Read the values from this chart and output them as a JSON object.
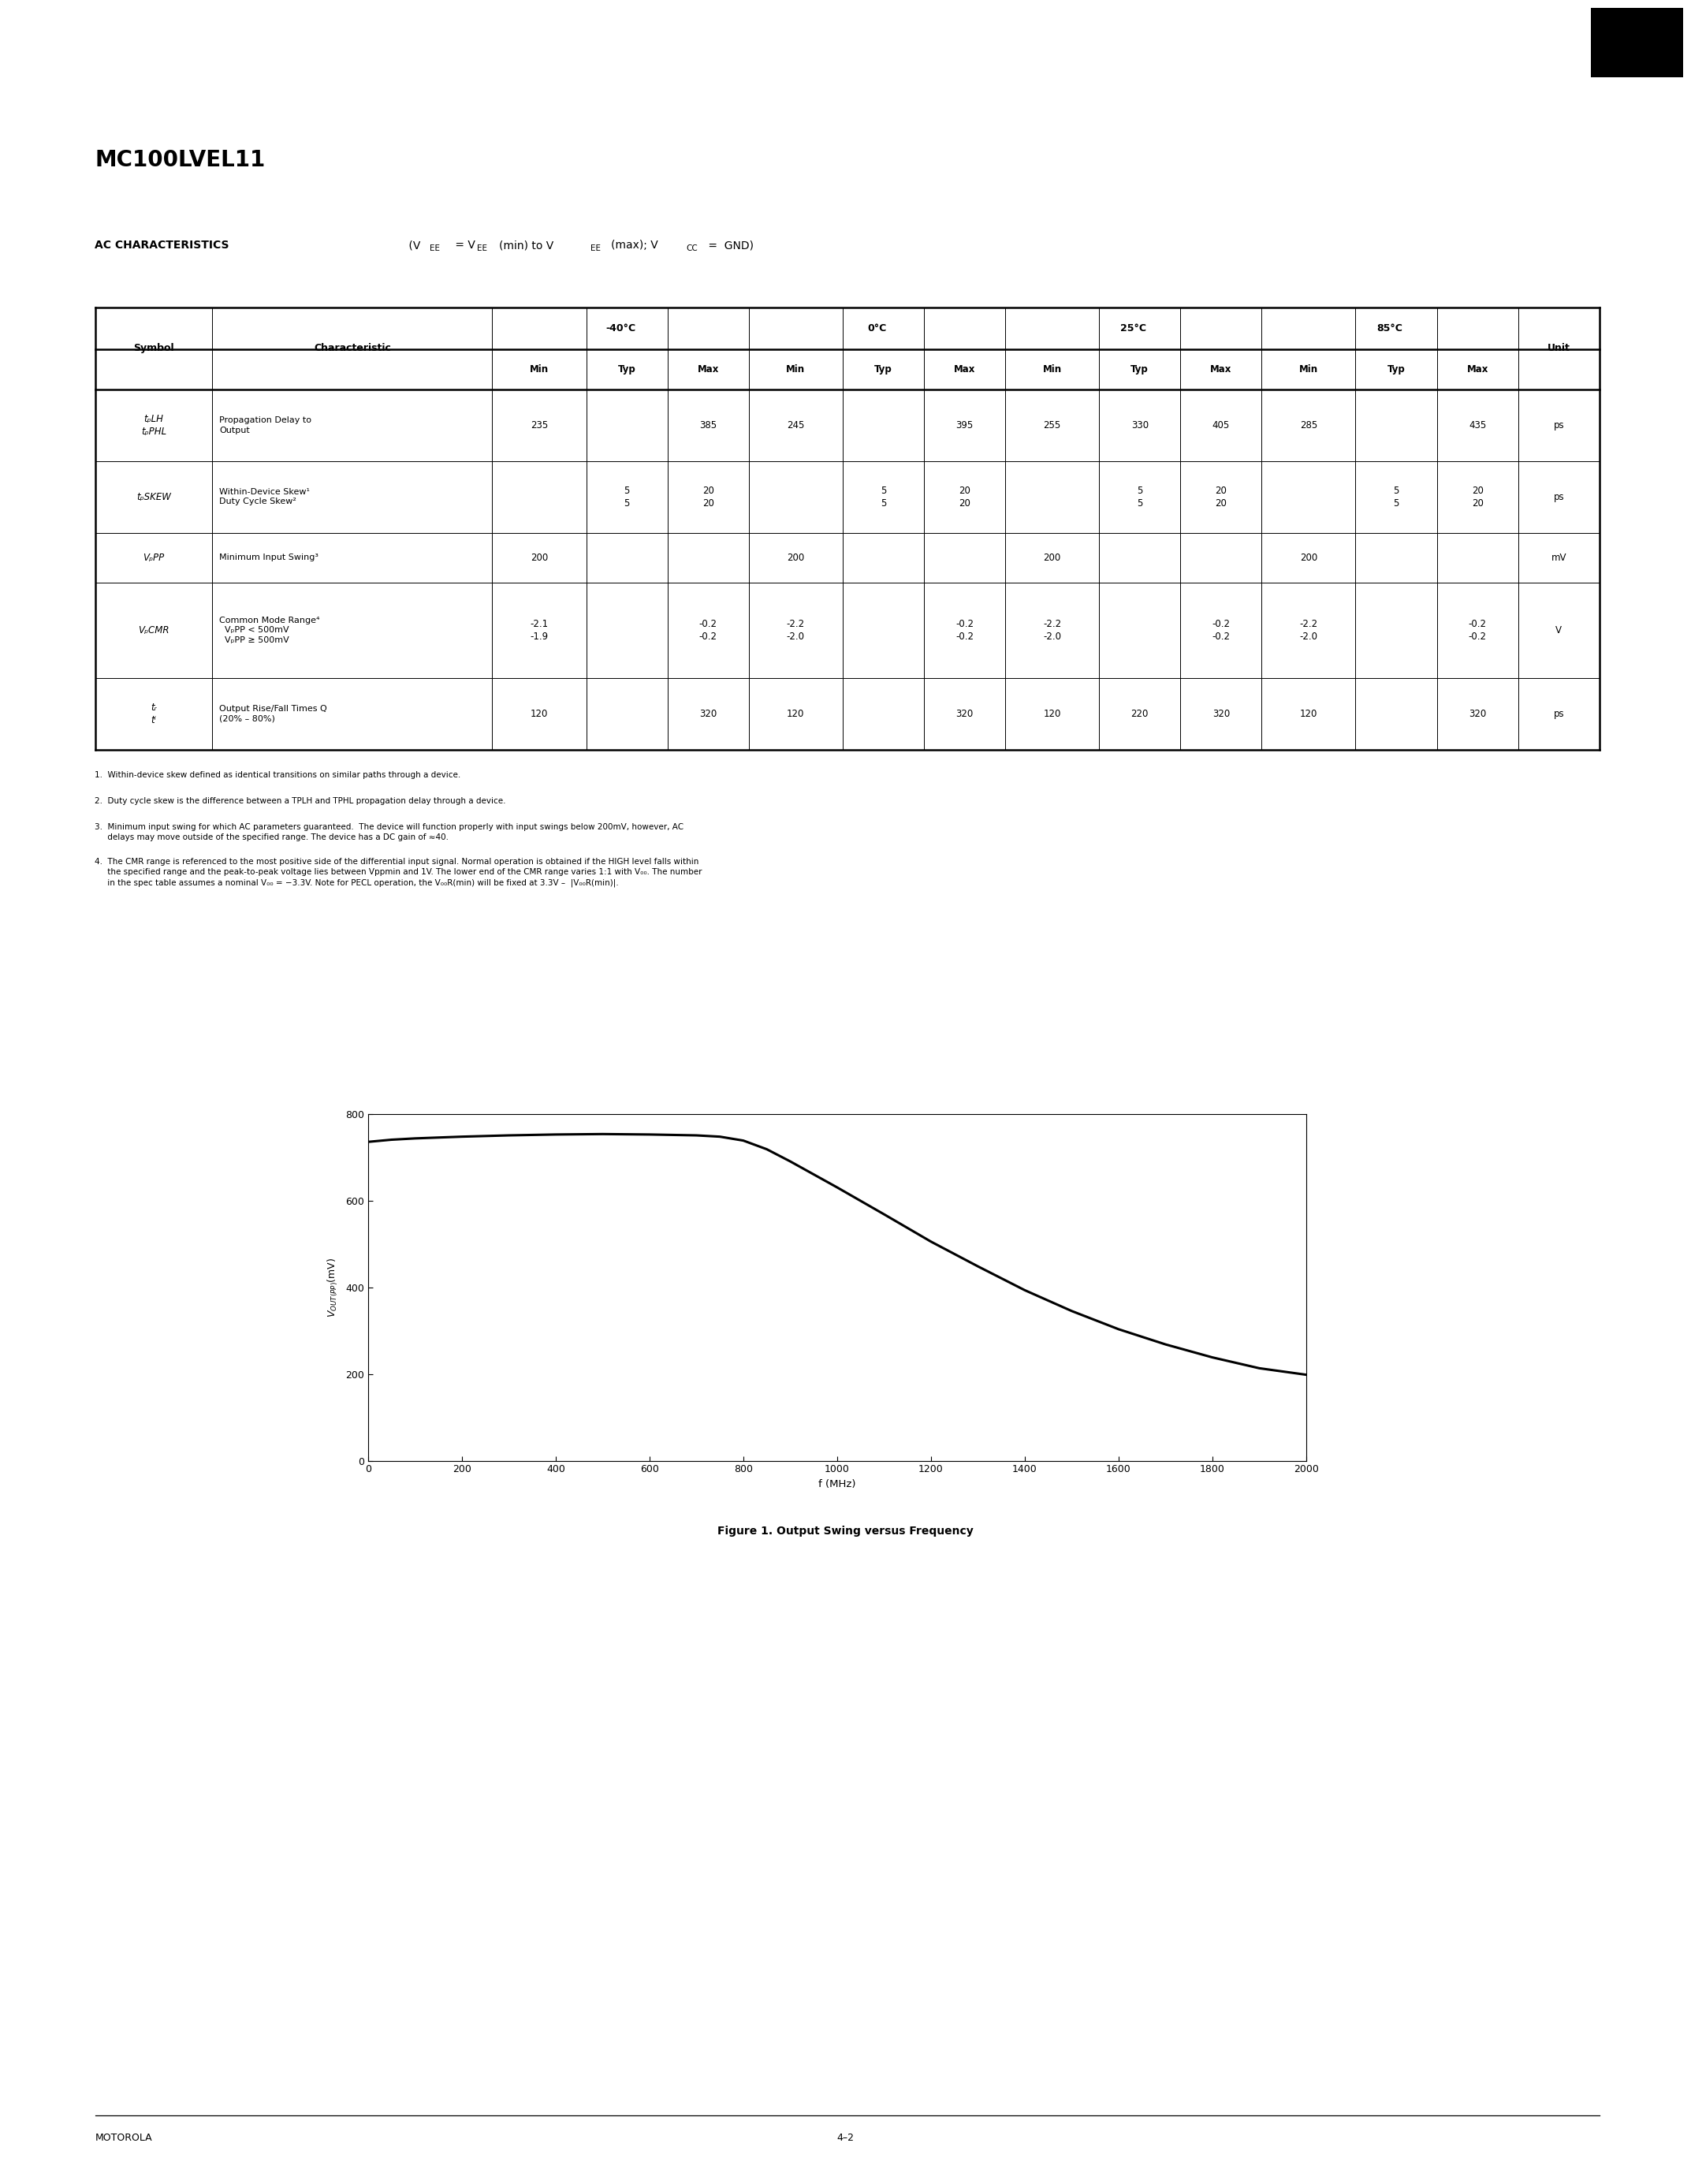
{
  "title": "MC100LVEL11",
  "ac_char_bold": "AC CHARACTERISTICS",
  "ac_char_normal": " (V",
  "ac_char_ee1": "EE",
  "ac_char_eq": " = V",
  "ac_char_ee2": "EE",
  "ac_char_min": "(min) to V",
  "ac_char_ee3": "EE",
  "ac_char_max": "(max); V",
  "ac_char_cc": "CC",
  "ac_char_end": " =  GND)",
  "temp_headers": [
    "-40°C",
    "0°C",
    "25°C",
    "85°C"
  ],
  "graph_x": [
    0,
    50,
    100,
    200,
    300,
    400,
    500,
    600,
    700,
    750,
    800,
    850,
    900,
    1000,
    1100,
    1200,
    1300,
    1400,
    1500,
    1600,
    1700,
    1800,
    1900,
    2000
  ],
  "graph_y": [
    735,
    740,
    743,
    747,
    750,
    752,
    753,
    752,
    750,
    747,
    738,
    718,
    690,
    630,
    568,
    505,
    448,
    393,
    345,
    303,
    268,
    238,
    213,
    198
  ],
  "graph_xlabel": "f (MHz)",
  "graph_ylabel_math": "$V_{OUT(PP)}$(mV)",
  "graph_title": "Figure 1. Output Swing versus Frequency",
  "graph_xlim": [
    0,
    2000
  ],
  "graph_ylim": [
    0,
    800
  ],
  "graph_xticks": [
    0,
    200,
    400,
    600,
    800,
    1000,
    1200,
    1400,
    1600,
    1800,
    2000
  ],
  "graph_yticks": [
    0,
    200,
    400,
    600,
    800
  ],
  "footer_left": "MOTOROLA",
  "footer_right": "4–2",
  "background_color": "#ffffff",
  "text_color": "#000000"
}
